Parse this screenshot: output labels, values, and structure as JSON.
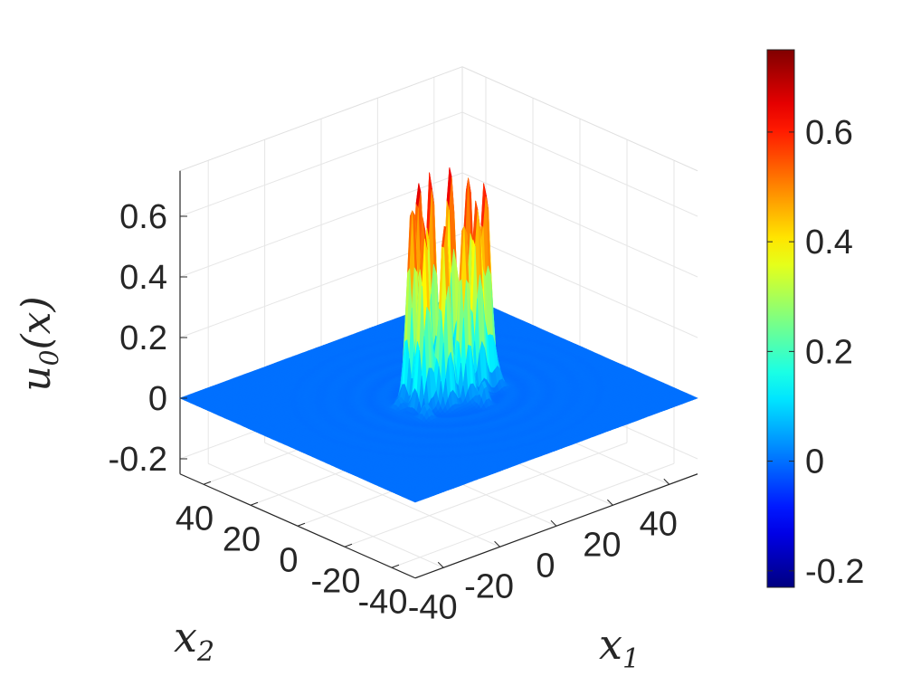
{
  "chart_data": {
    "type": "surface",
    "title": "",
    "xlabel": "x1",
    "ylabel": "x2",
    "zlabel": "u0(x)",
    "xlabel_parts": {
      "base": "x",
      "sub": "1"
    },
    "ylabel_parts": {
      "base": "x",
      "sub": "2"
    },
    "zlabel_parts": {
      "base": "u",
      "sub": "0",
      "arg": "(x)"
    },
    "xlim": [
      -50,
      50
    ],
    "ylim": [
      -50,
      50
    ],
    "zlim": [
      -0.25,
      0.75
    ],
    "x_ticks": [
      -40,
      -20,
      0,
      20,
      40
    ],
    "x_tick_labels": [
      "-40",
      "-20",
      "0",
      "20",
      "40"
    ],
    "y_ticks": [
      -40,
      -20,
      0,
      20,
      40
    ],
    "y_tick_labels": [
      "-40",
      "-20",
      "0",
      "20",
      "40"
    ],
    "z_ticks": [
      -0.2,
      0,
      0.2,
      0.4,
      0.6
    ],
    "z_tick_labels": [
      "-0.2",
      "0",
      "0.2",
      "0.4",
      "0.6"
    ],
    "colorbar": {
      "colormap": "jet",
      "range": [
        -0.23,
        0.75
      ],
      "ticks": [
        -0.2,
        0,
        0.2,
        0.4,
        0.6
      ],
      "tick_labels": [
        "-0.2",
        "0",
        "0.2",
        "0.4",
        "0.6"
      ]
    },
    "base_level": 0,
    "peaks": [
      {
        "x": -6,
        "y": 4,
        "z": 0.66
      },
      {
        "x": -2,
        "y": 6,
        "z": 0.72
      },
      {
        "x": 3,
        "y": 7,
        "z": 0.74
      },
      {
        "x": 9,
        "y": 6,
        "z": 0.73
      },
      {
        "x": 13,
        "y": 3,
        "z": 0.69
      },
      {
        "x": 14,
        "y": -3,
        "z": 0.68
      },
      {
        "x": -7,
        "y": -2,
        "z": 0.64
      },
      {
        "x": -2,
        "y": -5,
        "z": 0.63
      },
      {
        "x": 4,
        "y": -6,
        "z": 0.62
      },
      {
        "x": 10,
        "y": -4,
        "z": 0.64
      },
      {
        "x": 6,
        "y": -12,
        "z": 0.08
      },
      {
        "x": 16,
        "y": -6,
        "z": 0.06
      },
      {
        "x": -11,
        "y": -8,
        "z": 0.05
      },
      {
        "x": -12,
        "y": 2,
        "z": 0.04
      }
    ],
    "grid": true,
    "legend": "none"
  }
}
